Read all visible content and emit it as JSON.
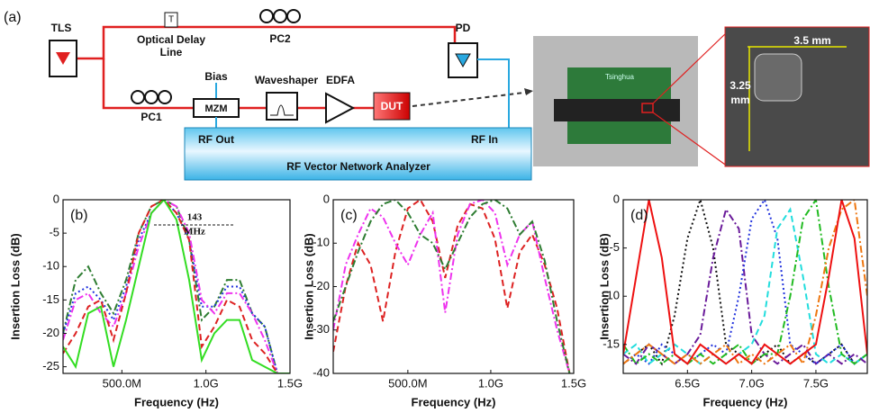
{
  "diagram": {
    "panel": "(a)",
    "tls": "TLS",
    "delay_box": "T",
    "delay_line": [
      "Optical Delay",
      "Line"
    ],
    "pc2": "PC2",
    "pc1": "PC1",
    "bias": "Bias",
    "mzm": "MZM",
    "waveshaper": "Waveshaper",
    "edfa": "EDFA",
    "dut": "DUT",
    "pd": "PD",
    "rf_out": "RF Out",
    "rf_in": "RF In",
    "vna": "RF Vector Network Analyzer",
    "board": "Tsinghua",
    "width": "3.5 mm",
    "height": [
      "3.25",
      "mm"
    ]
  },
  "chart_data": [
    {
      "type": "line",
      "label": "(b)",
      "ylabel": "Insertion Loss (dB)",
      "xlabel": "Frequency (Hz)",
      "annotation": [
        "143",
        "MHz"
      ],
      "xlim": [
        150000000,
        1500000000
      ],
      "ylim": [
        -26,
        0
      ],
      "xticks": [
        {
          "value": 500000000,
          "label": "500.0M"
        },
        {
          "value": 1000000000,
          "label": "1.0G"
        },
        {
          "value": 1500000000,
          "label": "1.5G"
        }
      ],
      "yticks": [
        0,
        -5,
        -10,
        -15,
        -20,
        -25
      ],
      "x": [
        150000000,
        225000000,
        300000000,
        375000000,
        450000000,
        525000000,
        600000000,
        675000000,
        750000000,
        825000000,
        900000000,
        975000000,
        1050000000,
        1125000000,
        1200000000,
        1275000000,
        1350000000,
        1425000000,
        1500000000
      ],
      "series": [
        {
          "color": "#2e7d32",
          "style": "dashdot",
          "values": [
            -20,
            -12,
            -10,
            -14,
            -17,
            -12,
            -5,
            -1,
            0,
            -1,
            -6,
            -18,
            -16,
            -12,
            -12,
            -17,
            -19,
            -26,
            -26
          ]
        },
        {
          "color": "#2233dd",
          "style": "dotted",
          "values": [
            -20,
            -14,
            -13,
            -15,
            -18,
            -13,
            -6,
            -2,
            0,
            -2,
            -6,
            -16,
            -16,
            -13,
            -13,
            -17,
            -19,
            -26,
            -26
          ]
        },
        {
          "color": "#ee33ee",
          "style": "dashdot",
          "values": [
            -21,
            -15,
            -14,
            -17,
            -19,
            -14,
            -7,
            -2,
            0,
            -1,
            -5,
            -15,
            -17,
            -14,
            -14,
            -17,
            -21,
            -26,
            -26
          ]
        },
        {
          "color": "#dd2222",
          "style": "dashed",
          "values": [
            -23,
            -20,
            -16,
            -15,
            -21,
            -14,
            -5,
            -1,
            0,
            -2,
            -6,
            -22,
            -19,
            -15,
            -16,
            -21,
            -23,
            -26,
            -26
          ]
        },
        {
          "color": "#33dd22",
          "style": "solid",
          "values": [
            -22,
            -25,
            -17,
            -16,
            -25,
            -18,
            -10,
            -2,
            0,
            -3,
            -12,
            -24,
            -20,
            -18,
            -18,
            -24,
            -25,
            -26,
            -26
          ]
        }
      ]
    },
    {
      "type": "line",
      "label": "(c)",
      "ylabel": "Insertion Loss (dB)",
      "xlabel": "Frequency (Hz)",
      "xlim": [
        50000000,
        1500000000
      ],
      "ylim": [
        -40,
        0
      ],
      "xticks": [
        {
          "value": 500000000,
          "label": "500.0M"
        },
        {
          "value": 1000000000,
          "label": "1.0G"
        },
        {
          "value": 1500000000,
          "label": "1.5G"
        }
      ],
      "yticks": [
        0,
        -10,
        -20,
        -30,
        -40
      ],
      "x": [
        50000000,
        125000000,
        200000000,
        275000000,
        350000000,
        425000000,
        500000000,
        575000000,
        650000000,
        725000000,
        800000000,
        875000000,
        950000000,
        1025000000,
        1100000000,
        1175000000,
        1250000000,
        1325000000,
        1400000000,
        1475000000
      ],
      "series": [
        {
          "color": "#dd2222",
          "style": "dashed",
          "values": [
            -35,
            -20,
            -10,
            -15,
            -28,
            -12,
            -2,
            0,
            -5,
            -18,
            -6,
            -1,
            -2,
            -9,
            -25,
            -12,
            -8,
            -15,
            -25,
            -40
          ]
        },
        {
          "color": "#ee33ee",
          "style": "dashdot",
          "values": [
            -30,
            -15,
            -8,
            -2,
            -4,
            -10,
            -15,
            -8,
            -3,
            -26,
            -8,
            -1,
            0,
            -3,
            -15,
            -8,
            -5,
            -18,
            -30,
            -40
          ]
        },
        {
          "color": "#2e7d32",
          "style": "dashdot",
          "values": [
            -28,
            -20,
            -12,
            -5,
            -1,
            0,
            -3,
            -8,
            -10,
            -16,
            -10,
            -4,
            -1,
            0,
            -2,
            -8,
            -5,
            -14,
            -28,
            -40
          ]
        }
      ]
    },
    {
      "type": "line",
      "label": "(d)",
      "ylabel": "Insertion Loss (dB)",
      "xlabel": "Frequency (Hz)",
      "xlim": [
        6000000000,
        7900000000
      ],
      "ylim": [
        -18,
        0
      ],
      "xticks": [
        {
          "value": 6500000000,
          "label": "6.5G"
        },
        {
          "value": 7000000000,
          "label": "7.0G"
        },
        {
          "value": 7500000000,
          "label": "7.5G"
        }
      ],
      "yticks": [
        0,
        -5,
        -10,
        -15
      ],
      "x": [
        6000000000,
        6100000000,
        6200000000,
        6300000000,
        6400000000,
        6500000000,
        6600000000,
        6700000000,
        6800000000,
        6900000000,
        7000000000,
        7100000000,
        7200000000,
        7300000000,
        7400000000,
        7500000000,
        7600000000,
        7700000000,
        7800000000,
        7900000000
      ],
      "series": [
        {
          "color": "#111111",
          "style": "dotted",
          "values": [
            -17,
            -16,
            -15,
            -17,
            -12,
            -4,
            0,
            -5,
            -15,
            -16,
            -17,
            -16,
            -15,
            -17,
            -16,
            -17,
            -16,
            -15,
            -17,
            -16
          ]
        },
        {
          "color": "#6a1b9a",
          "style": "dashdot",
          "values": [
            -16,
            -17,
            -15,
            -16,
            -17,
            -16,
            -14,
            -6,
            -1,
            -3,
            -14,
            -16,
            -17,
            -16,
            -15,
            -17,
            -16,
            -17,
            -16,
            -17
          ]
        },
        {
          "color": "#2233dd",
          "style": "dotted",
          "values": [
            -17,
            -16,
            -17,
            -15,
            -16,
            -17,
            -16,
            -15,
            -16,
            -10,
            -2,
            0,
            -4,
            -15,
            -16,
            -17,
            -16,
            -15,
            -17,
            -16
          ]
        },
        {
          "color": "#22dddd",
          "style": "dashed",
          "values": [
            -16,
            -15,
            -17,
            -16,
            -15,
            -16,
            -17,
            -16,
            -17,
            -16,
            -15,
            -12,
            -3,
            -1,
            -8,
            -16,
            -17,
            -16,
            -17,
            -16
          ]
        },
        {
          "color": "#22bb22",
          "style": "dashdot",
          "values": [
            -15,
            -17,
            -16,
            -17,
            -16,
            -17,
            -16,
            -17,
            -16,
            -15,
            -17,
            -16,
            -16,
            -10,
            -2,
            0,
            -9,
            -16,
            -17,
            -16
          ]
        },
        {
          "color": "#ee7711",
          "style": "dashdot",
          "values": [
            -17,
            -16,
            -15,
            -16,
            -17,
            -16,
            -17,
            -16,
            -15,
            -17,
            -16,
            -17,
            -16,
            -15,
            -17,
            -12,
            -5,
            -1,
            0,
            -10
          ]
        },
        {
          "color": "#ee1111",
          "style": "solid",
          "values": [
            -16,
            -8,
            0,
            -6,
            -16,
            -17,
            -15,
            -16,
            -17,
            -16,
            -17,
            -15,
            -16,
            -17,
            -16,
            -15,
            -8,
            0,
            -4,
            -16
          ]
        }
      ]
    }
  ]
}
